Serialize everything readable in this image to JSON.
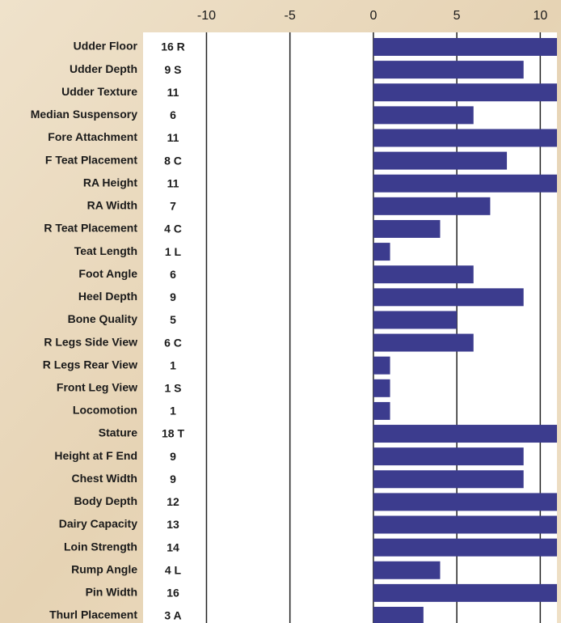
{
  "chart_data": {
    "type": "bar",
    "orientation": "horizontal",
    "categories": [
      "Udder Floor",
      "Udder Depth",
      "Udder Texture",
      "Median Suspensory",
      "Fore Attachment",
      "F Teat Placement",
      "RA Height",
      "RA Width",
      "R Teat Placement",
      "Teat Length",
      "Foot Angle",
      "Heel Depth",
      "Bone Quality",
      "R Legs Side View",
      "R Legs Rear View",
      "Front Leg View",
      "Locomotion",
      "Stature",
      "Height at F End",
      "Chest Width",
      "Body Depth",
      "Dairy Capacity",
      "Loin Strength",
      "Rump Angle",
      "Pin Width",
      "Thurl Placement"
    ],
    "values": [
      16,
      9,
      11,
      6,
      11,
      8,
      11,
      7,
      4,
      1,
      6,
      9,
      5,
      6,
      1,
      1,
      1,
      18,
      9,
      9,
      12,
      13,
      14,
      4,
      16,
      3
    ],
    "value_labels": [
      "16 R",
      "9 S",
      "11",
      "6",
      "11",
      "8 C",
      "11",
      "7",
      "4 C",
      "1 L",
      "6",
      "9",
      "5",
      "6 C",
      "1",
      "1 S",
      "1",
      "18 T",
      "9",
      "9",
      "12",
      "13",
      "14",
      "4 L",
      "16",
      "3 A"
    ],
    "color": "#3c3c8e",
    "xlim": [
      -13.8,
      11
    ],
    "xticks": [
      -10,
      -5,
      0,
      5,
      10
    ],
    "grid": true
  }
}
